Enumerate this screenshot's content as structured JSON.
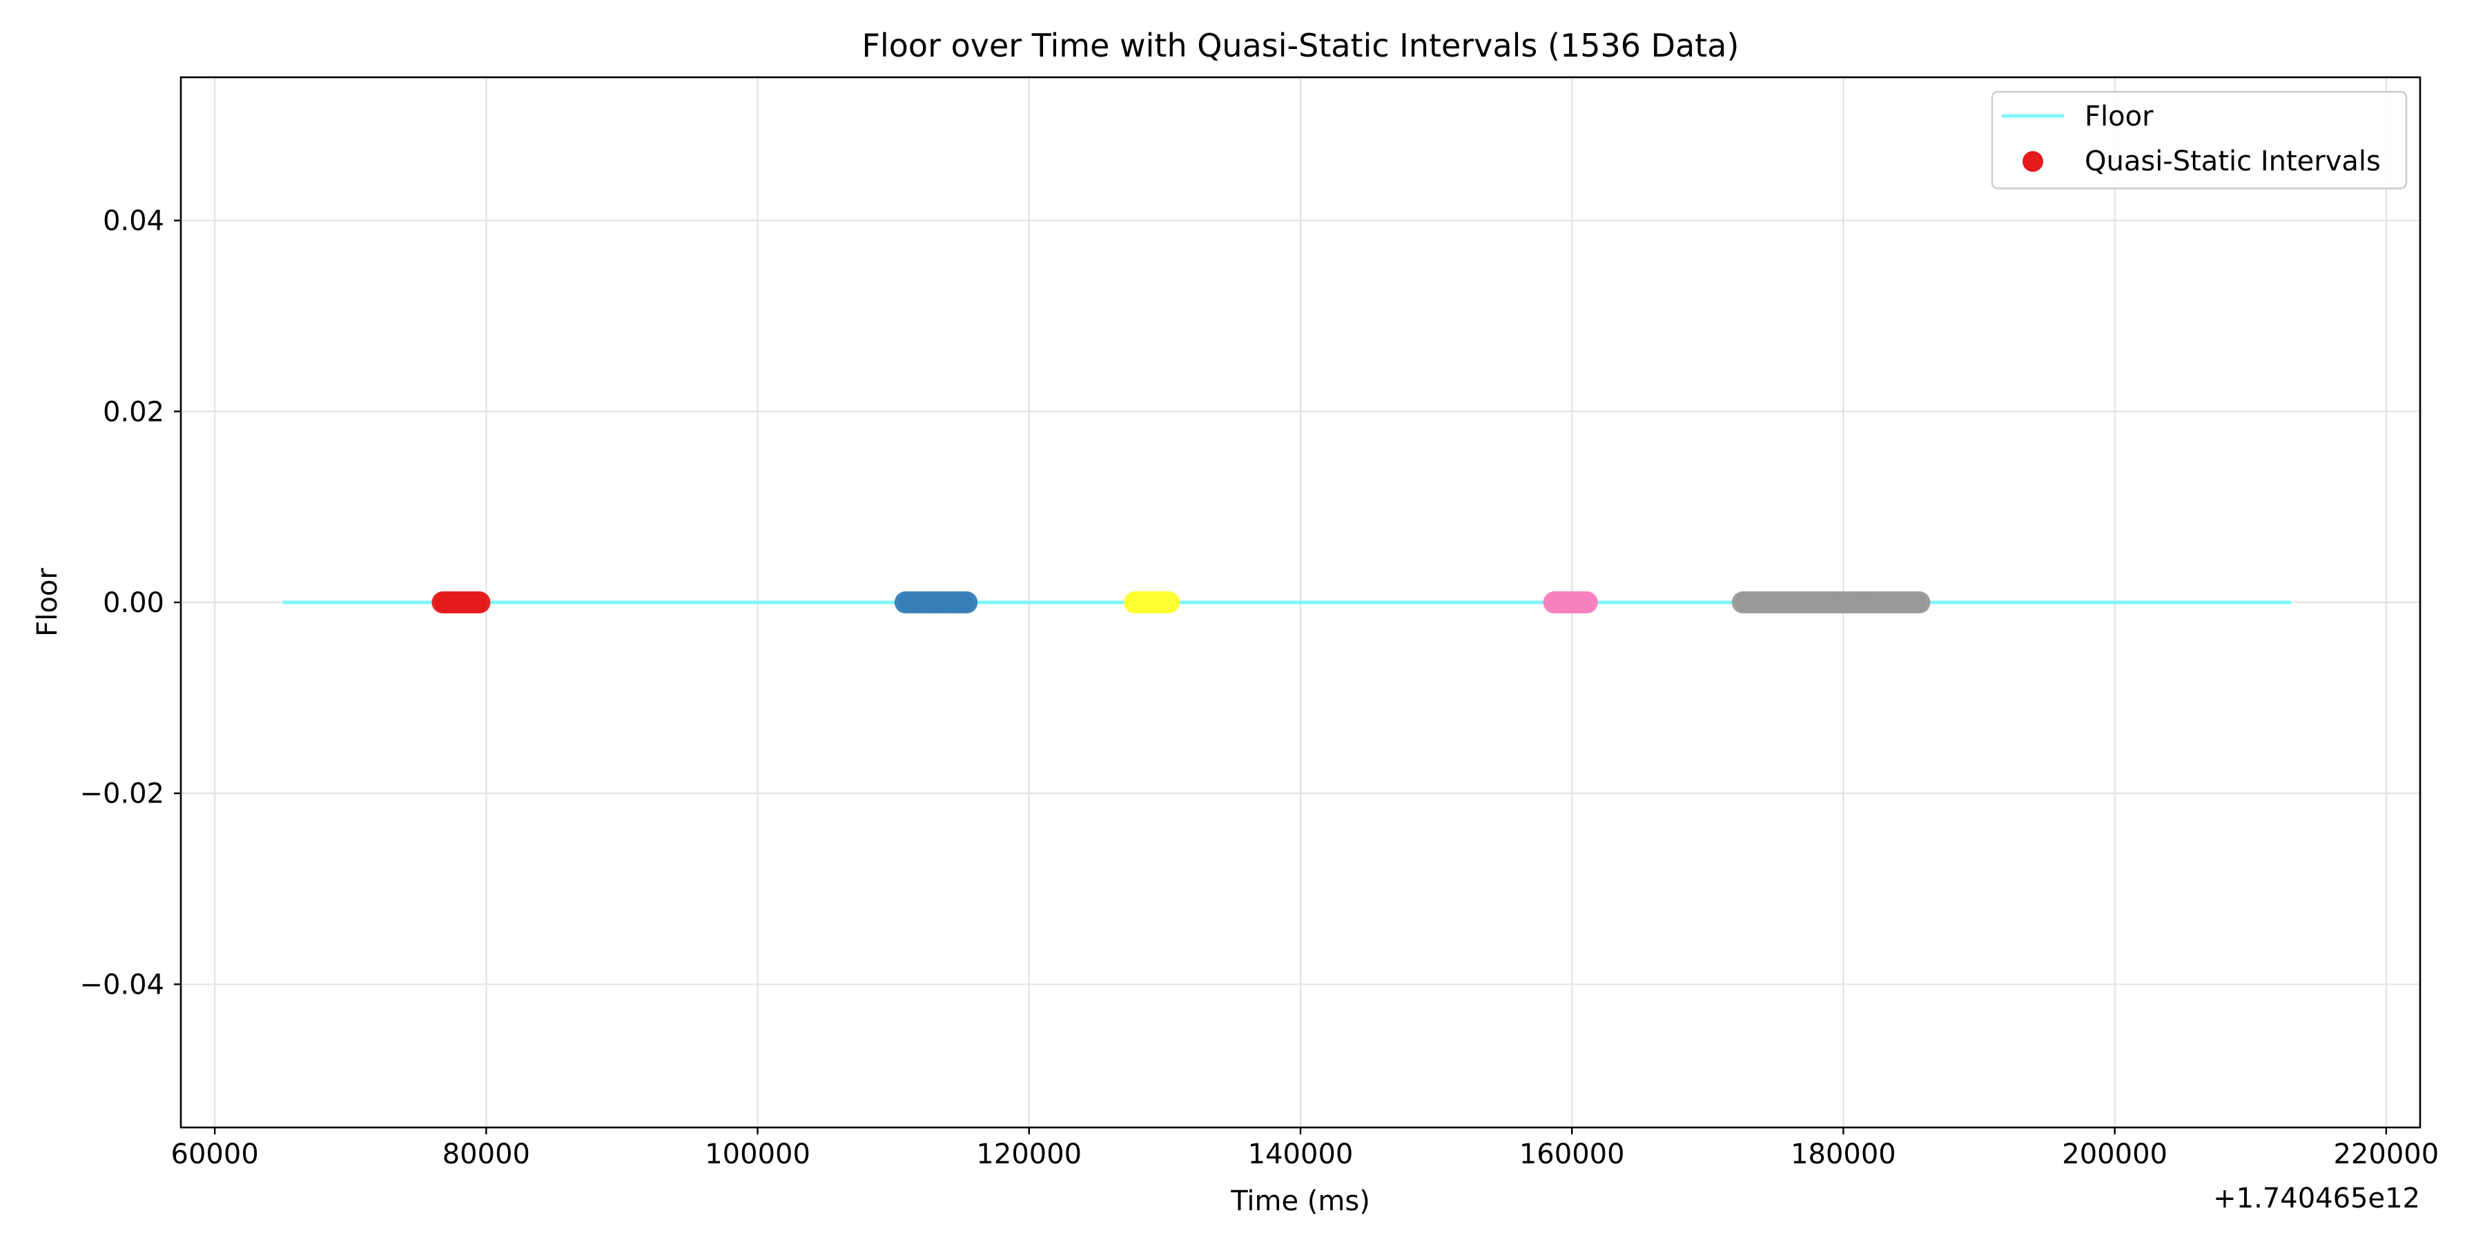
{
  "chart_data": {
    "type": "scatter",
    "title": "Floor over Time with Quasi-Static Intervals (1536 Data)",
    "xlabel": "Time (ms)",
    "ylabel": "Floor",
    "x_offset_label": "+1.740465e12",
    "xlim": [
      57500,
      222500
    ],
    "ylim": [
      -0.055,
      0.055
    ],
    "xticks": [
      60000,
      80000,
      100000,
      120000,
      140000,
      160000,
      180000,
      200000,
      220000
    ],
    "xtick_labels": [
      "60000",
      "80000",
      "100000",
      "120000",
      "140000",
      "160000",
      "180000",
      "200000",
      "220000"
    ],
    "yticks": [
      -0.04,
      -0.02,
      0.0,
      0.02,
      0.04
    ],
    "ytick_labels": [
      "−0.04",
      "−0.02",
      "0.00",
      "0.02",
      "0.04"
    ],
    "grid": true,
    "legend_position": "upper right",
    "legend": [
      {
        "label": "Floor",
        "kind": "line",
        "color": "#7ff5f5"
      },
      {
        "label": "Quasi-Static Intervals",
        "kind": "marker",
        "color": "#e41a1c"
      }
    ],
    "series": [
      {
        "name": "Floor",
        "kind": "line",
        "color": "#7ff5f5",
        "x": [
          65000,
          213000
        ],
        "y": [
          0,
          0
        ]
      },
      {
        "name": "Quasi-Static Intervals",
        "kind": "scatter",
        "intervals": [
          {
            "x_start": 76800,
            "x_end": 79500,
            "y": 0,
            "color": "#e41a1c"
          },
          {
            "x_start": 110900,
            "x_end": 115400,
            "y": 0,
            "color": "#377eb8"
          },
          {
            "x_start": 127800,
            "x_end": 130300,
            "y": 0,
            "color": "#ffff33"
          },
          {
            "x_start": 158700,
            "x_end": 161100,
            "y": 0,
            "color": "#f781bf"
          },
          {
            "x_start": 172600,
            "x_end": 185600,
            "y": 0,
            "color": "#999999"
          }
        ]
      }
    ]
  }
}
